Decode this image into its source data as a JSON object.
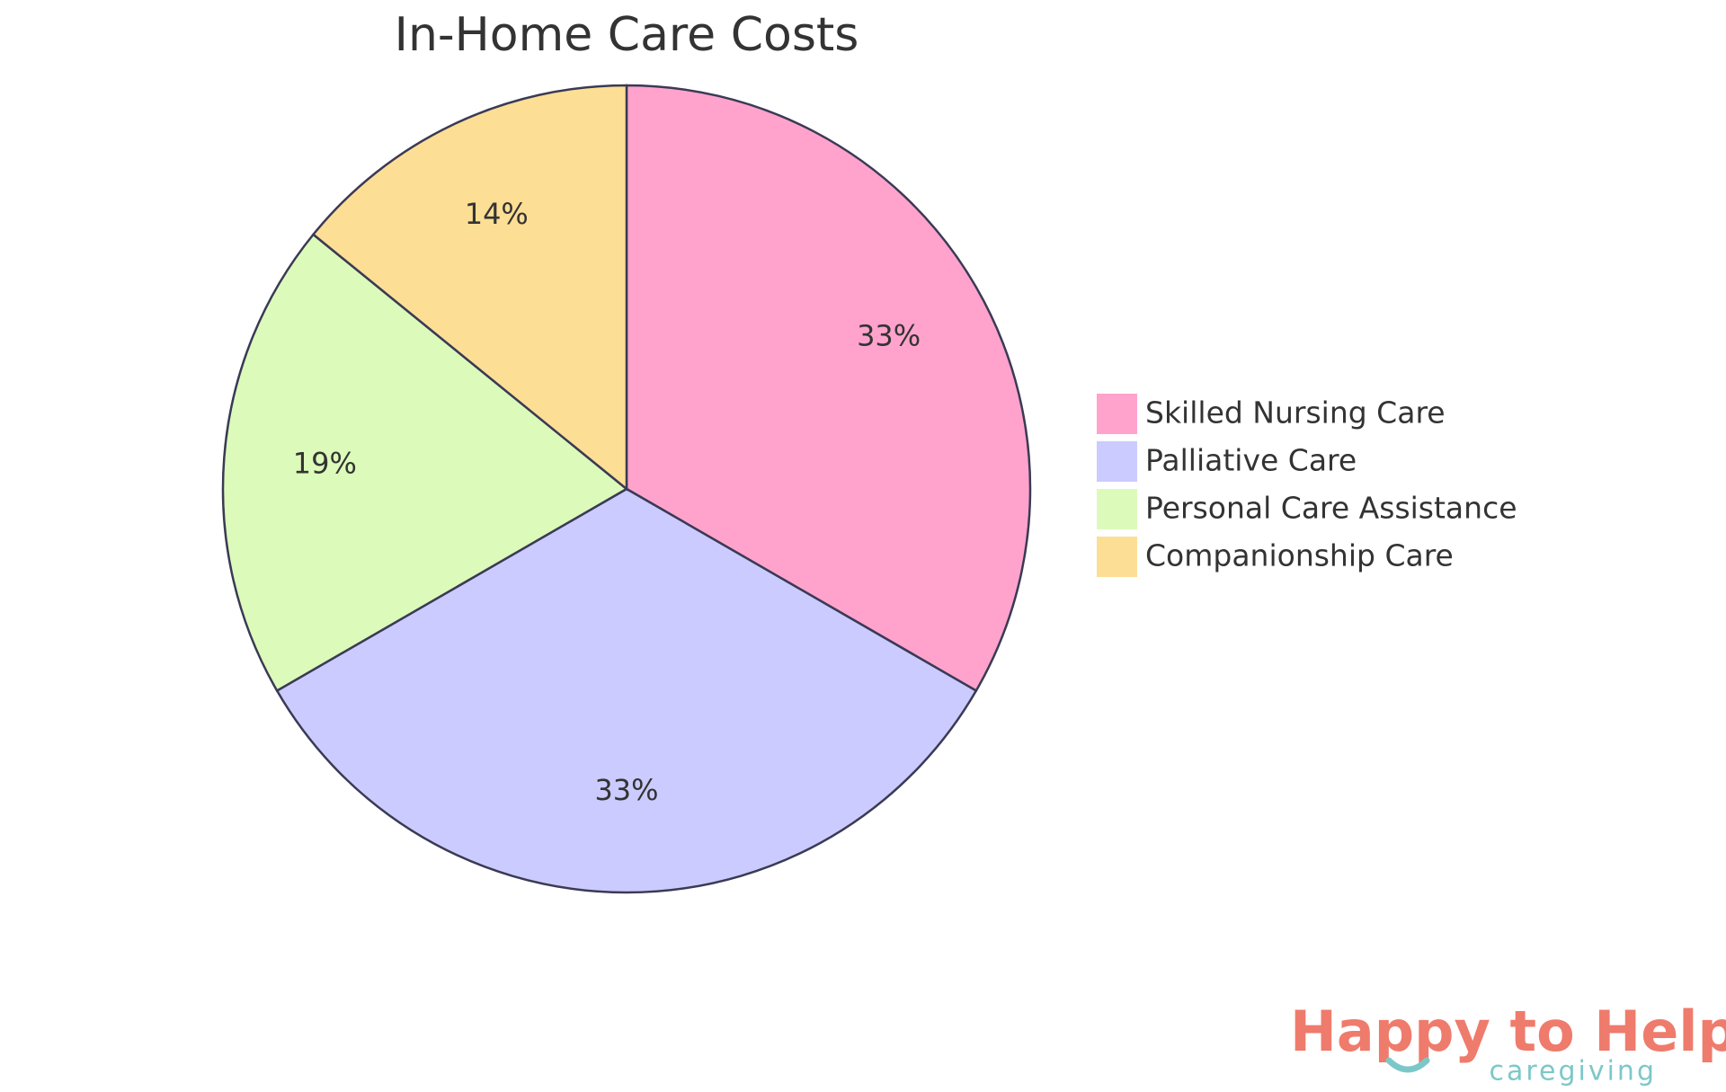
{
  "chart_data": {
    "type": "pie",
    "title": "In-Home Care Costs",
    "categories": [
      "Skilled Nursing Care",
      "Palliative Care",
      "Personal Care Assistance",
      "Companionship Care"
    ],
    "values": [
      33,
      33,
      19,
      14
    ],
    "value_labels": [
      "33%",
      "33%",
      "19%",
      "14%"
    ],
    "colors": [
      "#FFA3CD",
      "#CBCBFF",
      "#DCFABA",
      "#FDDE95"
    ],
    "legend": "right"
  },
  "logo": {
    "name": "Happy to Help",
    "tagline": "caregiving"
  }
}
